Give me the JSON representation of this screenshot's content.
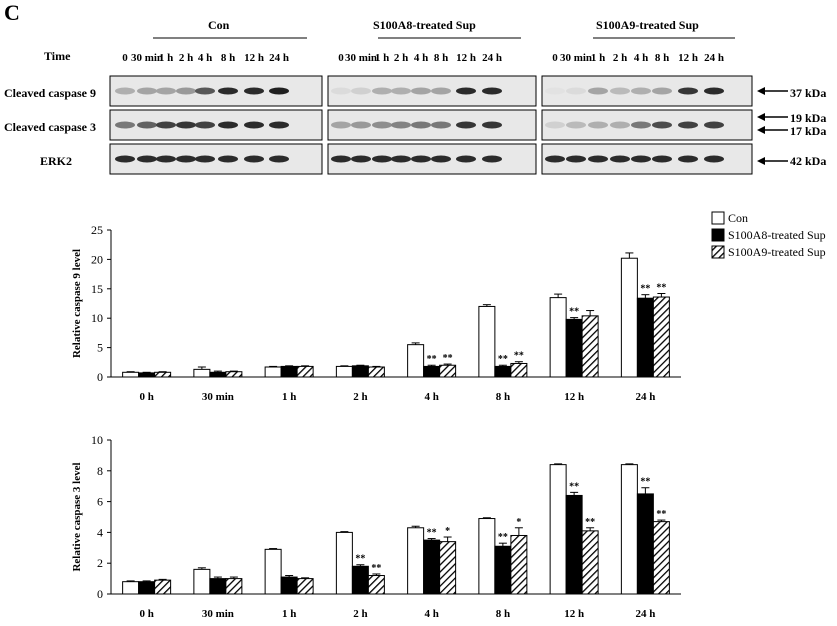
{
  "panel_label": "C",
  "blot": {
    "groups": [
      "Con",
      "S100A8-treated Sup",
      "S100A9-treated Sup"
    ],
    "time_label": "Time",
    "time_points": [
      "0",
      "30 min",
      "1 h",
      "2 h",
      "4 h",
      "8 h",
      "12 h",
      "24 h"
    ],
    "rows": [
      "Cleaved caspase 9",
      "Cleaved caspase 3",
      "ERK2"
    ],
    "size_markers": [
      "37 kDa",
      "19 kDa",
      "17 kDa",
      "42 kDa"
    ]
  },
  "colors": {
    "con": "#ffffff",
    "s100a8": "#000000",
    "s100a9": "hatched"
  },
  "chart_data": [
    {
      "type": "bar",
      "ylabel": "Relative caspase 9  level",
      "categories": [
        "0 h",
        "30 min",
        "1 h",
        "2 h",
        "4 h",
        "8 h",
        "12 h",
        "24 h"
      ],
      "ylim": [
        0,
        25
      ],
      "yticks": [
        0,
        5,
        10,
        15,
        20,
        25
      ],
      "legend_position": "top-right",
      "series": [
        {
          "name": "Con",
          "values": [
            0.8,
            1.3,
            1.7,
            1.8,
            5.5,
            12.0,
            13.5,
            20.2
          ],
          "errors": [
            0.1,
            0.4,
            0.1,
            0.1,
            0.3,
            0.3,
            0.6,
            0.9
          ],
          "marks": [
            "",
            "",
            "",
            "",
            "",
            "",
            "",
            ""
          ]
        },
        {
          "name": "S100A8-treated Sup",
          "values": [
            0.7,
            0.8,
            1.8,
            1.9,
            1.8,
            1.8,
            9.8,
            13.4
          ],
          "errors": [
            0.1,
            0.2,
            0.1,
            0.1,
            0.2,
            0.2,
            0.3,
            0.6
          ],
          "marks": [
            "",
            "",
            "",
            "",
            "**",
            "**",
            "**",
            "**"
          ]
        },
        {
          "name": "S100A9-treated Sup",
          "values": [
            0.8,
            0.9,
            1.8,
            1.7,
            2.0,
            2.3,
            10.4,
            13.6
          ],
          "errors": [
            0.1,
            0.1,
            0.1,
            0.1,
            0.2,
            0.3,
            0.9,
            0.6
          ],
          "marks": [
            "",
            "",
            "",
            "",
            "**",
            "**",
            "",
            "**"
          ]
        }
      ]
    },
    {
      "type": "bar",
      "ylabel": "Relative caspase 3  level",
      "categories": [
        "0 h",
        "30 min",
        "1 h",
        "2 h",
        "4 h",
        "8 h",
        "12 h",
        "24 h"
      ],
      "ylim": [
        0,
        10
      ],
      "yticks": [
        0,
        2,
        4,
        6,
        8,
        10
      ],
      "series": [
        {
          "name": "Con",
          "values": [
            0.8,
            1.6,
            2.9,
            4.0,
            4.3,
            4.9,
            8.4,
            8.4
          ],
          "errors": [
            0.05,
            0.1,
            0.05,
            0.05,
            0.1,
            0.05,
            0.05,
            0.05
          ],
          "marks": [
            "",
            "",
            "",
            "",
            "",
            "",
            "",
            ""
          ]
        },
        {
          "name": "S100A8-treated Sup",
          "values": [
            0.8,
            1.0,
            1.1,
            1.8,
            3.5,
            3.1,
            6.4,
            6.5
          ],
          "errors": [
            0.05,
            0.1,
            0.1,
            0.1,
            0.1,
            0.2,
            0.2,
            0.4
          ],
          "marks": [
            "",
            "",
            "",
            "**",
            "**",
            "**",
            "**",
            "**"
          ]
        },
        {
          "name": "S100A9-treated Sup",
          "values": [
            0.9,
            1.0,
            1.0,
            1.2,
            3.4,
            3.8,
            4.1,
            4.7
          ],
          "errors": [
            0.05,
            0.1,
            0.05,
            0.1,
            0.3,
            0.5,
            0.2,
            0.1
          ],
          "marks": [
            "",
            "",
            "",
            "**",
            "*",
            "*",
            "**",
            "**"
          ]
        }
      ]
    }
  ]
}
